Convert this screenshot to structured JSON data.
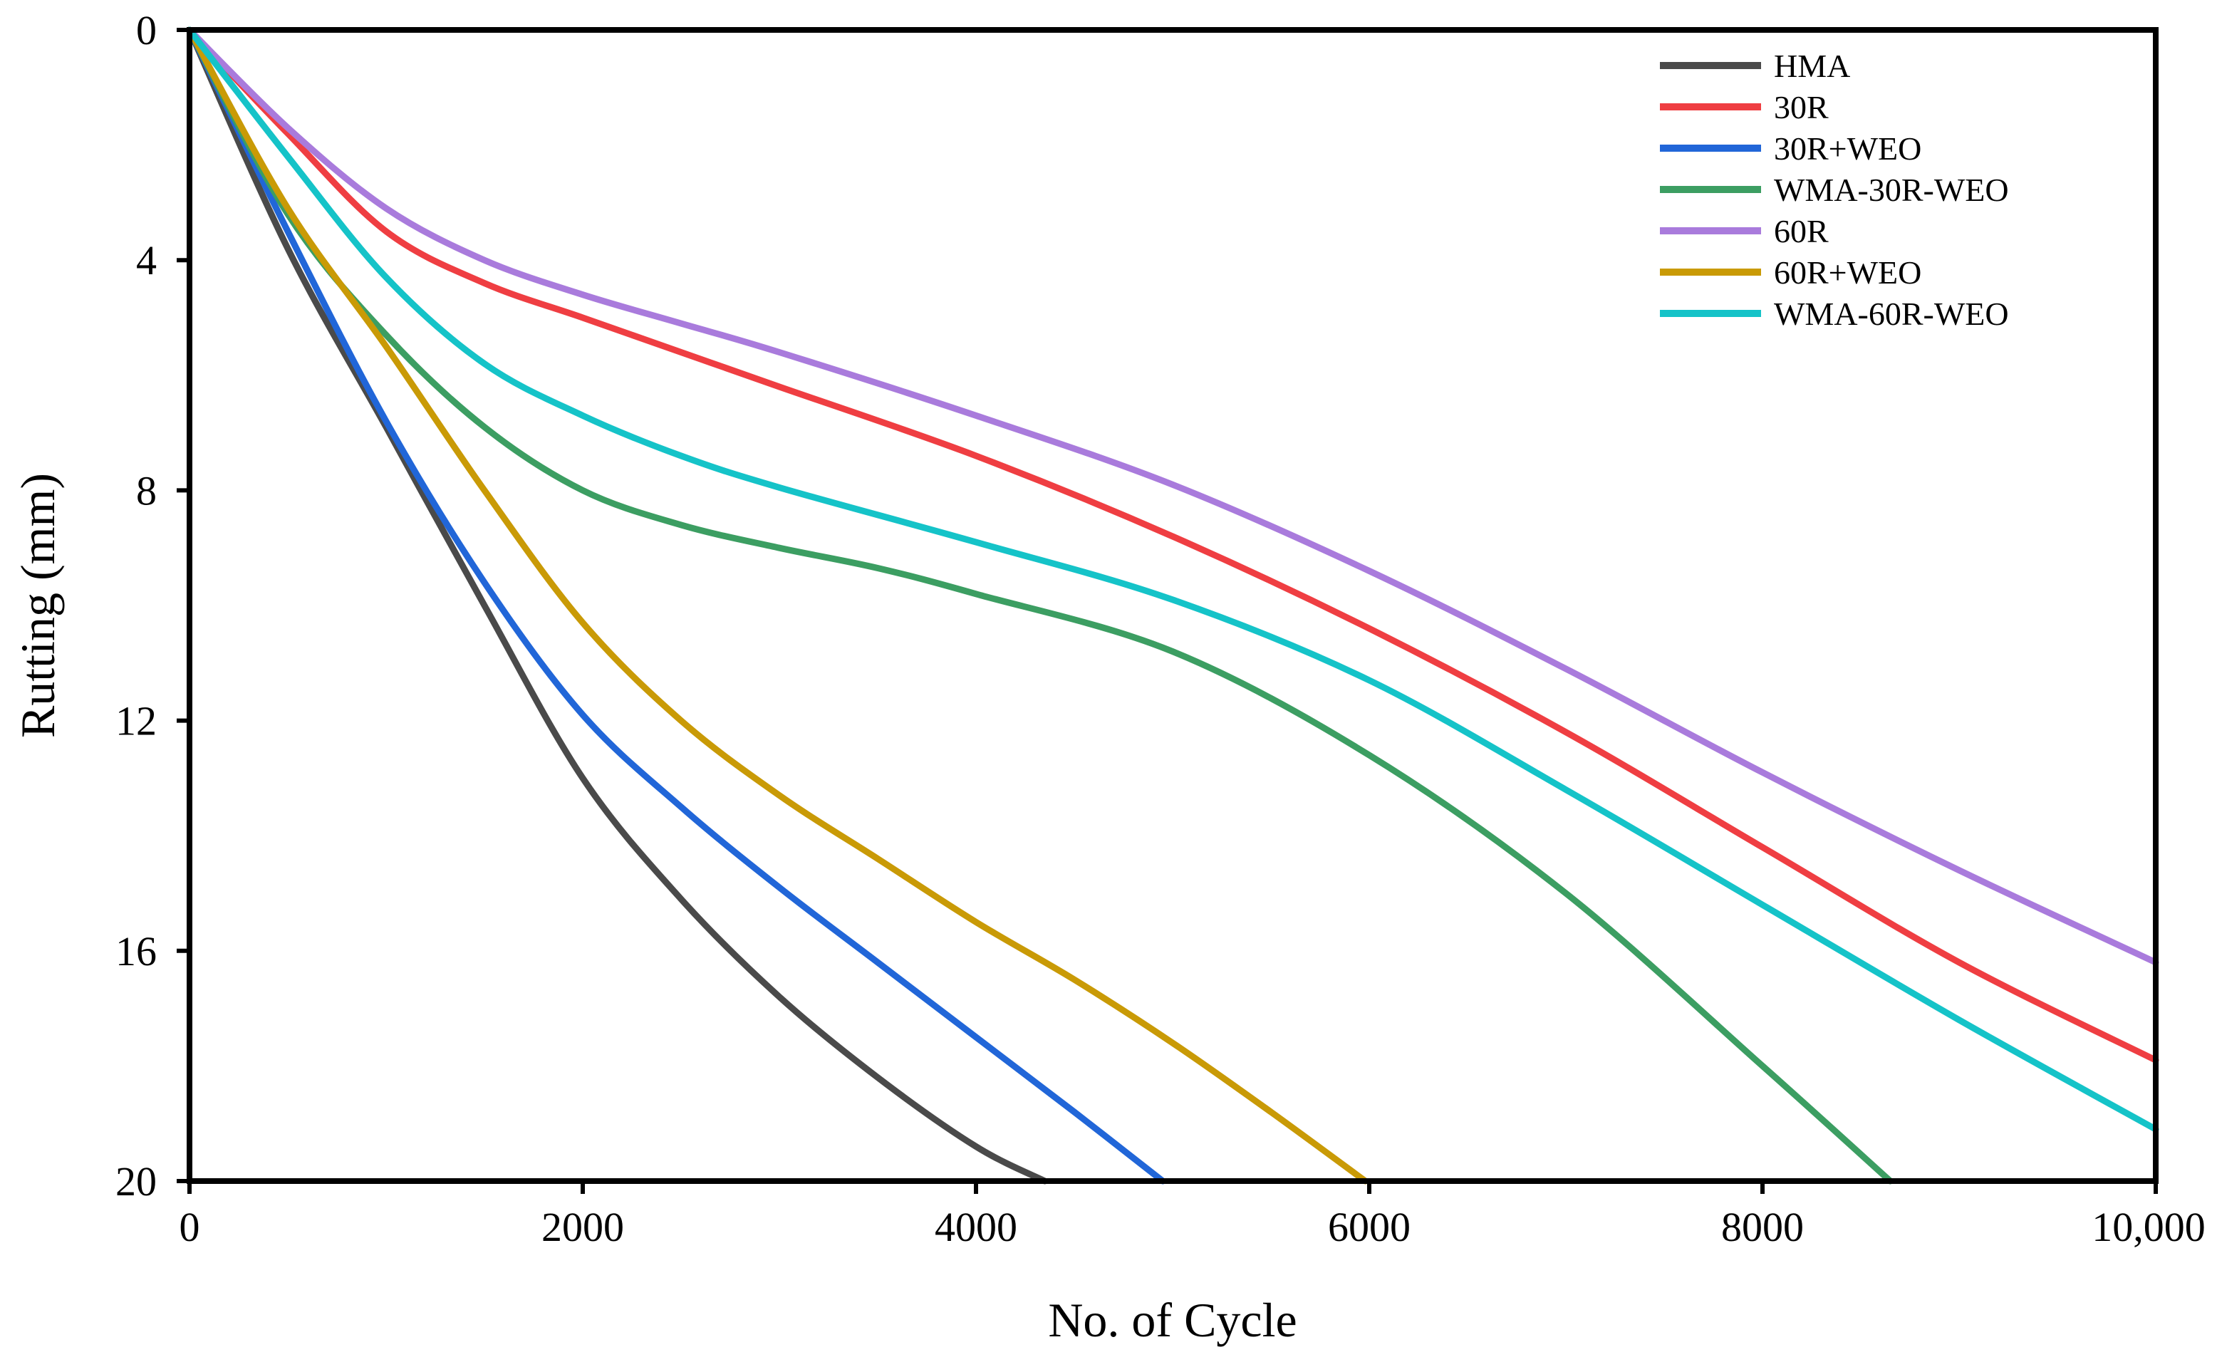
{
  "chart_data": {
    "type": "line",
    "title": "",
    "xlabel": "No. of Cycle",
    "ylabel": "Rutting (mm)",
    "xlim": [
      0,
      10000
    ],
    "ylim": [
      0,
      20
    ],
    "y_inverted": true,
    "grid": false,
    "legend_position": "top-right",
    "x_ticks": [
      0,
      2000,
      4000,
      6000,
      8000,
      10000
    ],
    "x_tick_labels": [
      "0",
      "2000",
      "4000",
      "6000",
      "8000",
      "10,000"
    ],
    "y_ticks": [
      0,
      4,
      8,
      12,
      16,
      20
    ],
    "y_tick_labels": [
      "0",
      "4",
      "8",
      "12",
      "16",
      "20"
    ],
    "series": [
      {
        "name": "HMA",
        "color": "#4a4a4a",
        "points": [
          [
            0,
            0
          ],
          [
            500,
            3.8
          ],
          [
            1000,
            6.9
          ],
          [
            1500,
            10.0
          ],
          [
            2000,
            13.0
          ],
          [
            2500,
            15.1
          ],
          [
            3000,
            16.8
          ],
          [
            3500,
            18.2
          ],
          [
            4000,
            19.4
          ],
          [
            4350,
            20.0
          ]
        ]
      },
      {
        "name": "30R",
        "color": "#ef3e42",
        "points": [
          [
            0,
            0
          ],
          [
            500,
            1.8
          ],
          [
            1000,
            3.5
          ],
          [
            1500,
            4.4
          ],
          [
            2000,
            5.0
          ],
          [
            2500,
            5.6
          ],
          [
            3000,
            6.2
          ],
          [
            4000,
            7.4
          ],
          [
            5000,
            8.8
          ],
          [
            6000,
            10.4
          ],
          [
            7000,
            12.2
          ],
          [
            8000,
            14.2
          ],
          [
            9000,
            16.2
          ],
          [
            10000,
            17.9
          ]
        ]
      },
      {
        "name": "30R+WEO",
        "color": "#2166d8",
        "points": [
          [
            0,
            0
          ],
          [
            500,
            3.5
          ],
          [
            1000,
            6.8
          ],
          [
            1500,
            9.6
          ],
          [
            2000,
            11.9
          ],
          [
            2500,
            13.5
          ],
          [
            3000,
            14.9
          ],
          [
            3500,
            16.2
          ],
          [
            4000,
            17.5
          ],
          [
            4500,
            18.8
          ],
          [
            4950,
            20.0
          ]
        ]
      },
      {
        "name": "WMA-30R-WEO",
        "color": "#3c9e62",
        "points": [
          [
            0,
            0
          ],
          [
            500,
            3.2
          ],
          [
            1000,
            5.3
          ],
          [
            1500,
            6.9
          ],
          [
            2000,
            8.0
          ],
          [
            2500,
            8.6
          ],
          [
            3000,
            9.0
          ],
          [
            3500,
            9.35
          ],
          [
            4000,
            9.8
          ],
          [
            5000,
            10.8
          ],
          [
            6000,
            12.6
          ],
          [
            7000,
            15.0
          ],
          [
            8000,
            18.0
          ],
          [
            8650,
            20.0
          ]
        ]
      },
      {
        "name": "60R",
        "color": "#a97bdc",
        "points": [
          [
            0,
            0
          ],
          [
            500,
            1.7
          ],
          [
            1000,
            3.1
          ],
          [
            1500,
            4.0
          ],
          [
            2000,
            4.6
          ],
          [
            2500,
            5.1
          ],
          [
            3000,
            5.6
          ],
          [
            4000,
            6.7
          ],
          [
            5000,
            7.9
          ],
          [
            6000,
            9.4
          ],
          [
            7000,
            11.1
          ],
          [
            8000,
            12.9
          ],
          [
            9000,
            14.6
          ],
          [
            10000,
            16.2
          ]
        ]
      },
      {
        "name": "60R+WEO",
        "color": "#c99a06",
        "points": [
          [
            0,
            0
          ],
          [
            500,
            3.1
          ],
          [
            1000,
            5.5
          ],
          [
            1500,
            8.0
          ],
          [
            2000,
            10.3
          ],
          [
            2500,
            12.0
          ],
          [
            3000,
            13.3
          ],
          [
            3500,
            14.4
          ],
          [
            4000,
            15.5
          ],
          [
            4500,
            16.5
          ],
          [
            5000,
            17.6
          ],
          [
            5500,
            18.8
          ],
          [
            5980,
            20.0
          ]
        ]
      },
      {
        "name": "WMA-60R-WEO",
        "color": "#15c3c8",
        "points": [
          [
            0,
            0
          ],
          [
            500,
            2.2
          ],
          [
            1000,
            4.3
          ],
          [
            1500,
            5.8
          ],
          [
            2000,
            6.7
          ],
          [
            2500,
            7.4
          ],
          [
            3000,
            7.95
          ],
          [
            4000,
            8.9
          ],
          [
            5000,
            9.9
          ],
          [
            6000,
            11.3
          ],
          [
            7000,
            13.2
          ],
          [
            8000,
            15.2
          ],
          [
            9000,
            17.2
          ],
          [
            10000,
            19.1
          ]
        ]
      }
    ]
  }
}
